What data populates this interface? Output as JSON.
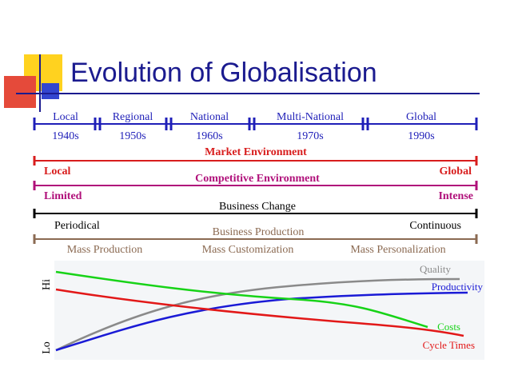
{
  "slide": {
    "title": "Evolution of Globalisation"
  },
  "timeline": {
    "eras": [
      {
        "name": "Local",
        "decade": "1940s"
      },
      {
        "name": "Regional",
        "decade": "1950s"
      },
      {
        "name": "National",
        "decade": "1960s"
      },
      {
        "name": "Multi-National",
        "decade": "1970s"
      },
      {
        "name": "Global",
        "decade": "1990s"
      }
    ],
    "color": "#1f1fb8"
  },
  "spectrums": [
    {
      "title": "Market Environment",
      "left": "Local",
      "right": "Global",
      "color": "#d81d1d"
    },
    {
      "title": "Competitive Environment",
      "left": "Limited",
      "right": "Intense",
      "color": "#b0107a"
    },
    {
      "title": "Business Change",
      "left": "Periodical",
      "right": "Continuous",
      "color": "#000000"
    }
  ],
  "production": {
    "title": "Business Production",
    "stages": [
      "Mass Production",
      "Mass Customization",
      "Mass Personalization"
    ],
    "color": "#8b6a52"
  },
  "chart_data": {
    "type": "line",
    "ylabel_high": "Hi",
    "ylabel_low": "Lo",
    "series": [
      {
        "name": "Quality",
        "color": "#8a8a8a",
        "trend": "rising from low to high, flattening"
      },
      {
        "name": "Productivity",
        "color": "#1a1ad6",
        "trend": "rising from low to high, flattening"
      },
      {
        "name": "Costs",
        "color": "#17d317",
        "trend": "falling from high to low, steeper at the end"
      },
      {
        "name": "Cycle Times",
        "color": "#e21818",
        "trend": "falling steadily from high to low"
      }
    ]
  }
}
